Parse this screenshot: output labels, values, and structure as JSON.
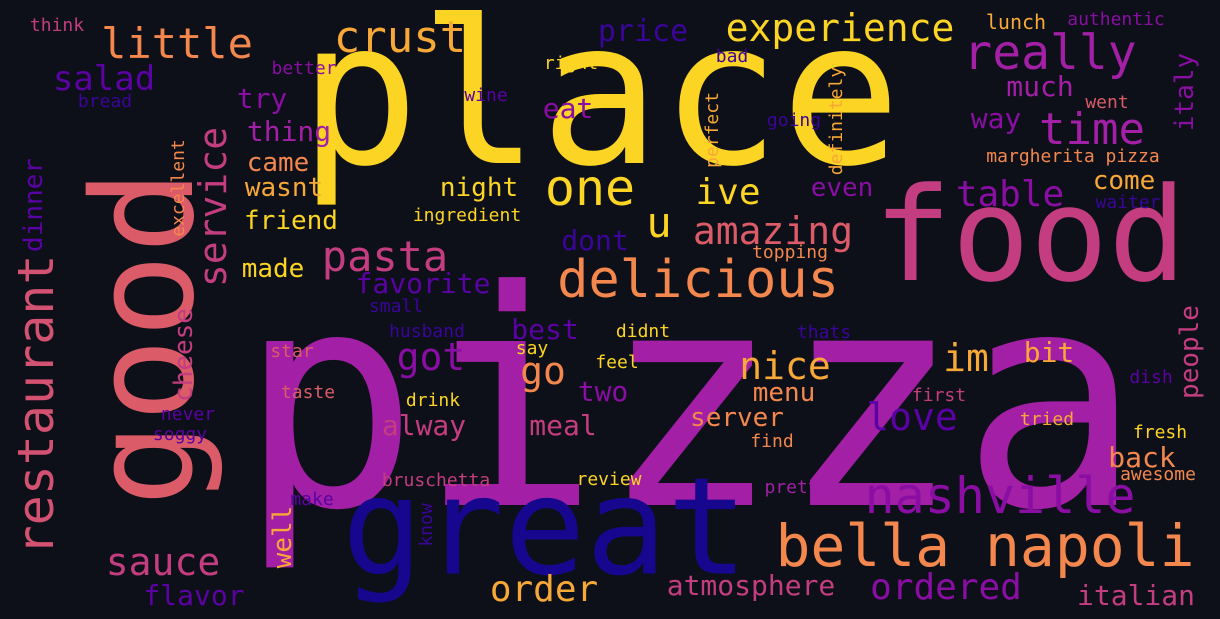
{
  "words": [
    {
      "text": "pizza",
      "color": "#a21fa6"
    },
    {
      "text": "place",
      "color": "#fbd424"
    },
    {
      "text": "good",
      "color": "#db5c68"
    },
    {
      "text": "food",
      "color": "#c33d80"
    },
    {
      "text": "great",
      "color": "#17078f"
    },
    {
      "text": "bella napoli",
      "color": "#f3874d"
    },
    {
      "text": "nashville",
      "color": "#8a0da4"
    },
    {
      "text": "restaurant",
      "color": "#d35171"
    },
    {
      "text": "delicious",
      "color": "#f3874d"
    },
    {
      "text": "one",
      "color": "#fbd424"
    },
    {
      "text": "really",
      "color": "#a21fa6"
    },
    {
      "text": "time",
      "color": "#a21fa6"
    },
    {
      "text": "little",
      "color": "#f3874d"
    },
    {
      "text": "crust",
      "color": "#f8a836"
    },
    {
      "text": "experience",
      "color": "#fbd424"
    },
    {
      "text": "service",
      "color": "#c33d80"
    },
    {
      "text": "pasta",
      "color": "#c33d80"
    },
    {
      "text": "salad",
      "color": "#5a02a3"
    },
    {
      "text": "amazing",
      "color": "#db5c68"
    },
    {
      "text": "u",
      "color": "#fbd424"
    },
    {
      "text": "ive",
      "color": "#fbd424"
    },
    {
      "text": "table",
      "color": "#8a0da4"
    },
    {
      "text": "nice",
      "color": "#f8a836"
    },
    {
      "text": "im",
      "color": "#f8a836"
    },
    {
      "text": "go",
      "color": "#f3874d"
    },
    {
      "text": "got",
      "color": "#8a0da4"
    },
    {
      "text": "love",
      "color": "#5a02a3"
    },
    {
      "text": "sauce",
      "color": "#c33d80"
    },
    {
      "text": "order",
      "color": "#f8a836"
    },
    {
      "text": "ordered",
      "color": "#8a0da4"
    },
    {
      "text": "atmosphere",
      "color": "#c33d80"
    },
    {
      "text": "italian",
      "color": "#c33d80"
    },
    {
      "text": "flavor",
      "color": "#5a02a3"
    },
    {
      "text": "cheese",
      "color": "#c33d80"
    },
    {
      "text": "dinner",
      "color": "#5a02a3"
    },
    {
      "text": "people",
      "color": "#c33d80"
    },
    {
      "text": "italy",
      "color": "#8a0da4"
    },
    {
      "text": "much",
      "color": "#a21fa6"
    },
    {
      "text": "way",
      "color": "#8a0da4"
    },
    {
      "text": "price",
      "color": "#3b049a"
    },
    {
      "text": "eat",
      "color": "#8a0da4"
    },
    {
      "text": "try",
      "color": "#8a0da4"
    },
    {
      "text": "thing",
      "color": "#a21fa6"
    },
    {
      "text": "came",
      "color": "#f3874d"
    },
    {
      "text": "wasnt",
      "color": "#f8a836"
    },
    {
      "text": "night",
      "color": "#fbd424"
    },
    {
      "text": "friend",
      "color": "#fbd424"
    },
    {
      "text": "made",
      "color": "#fbd424"
    },
    {
      "text": "favorite",
      "color": "#5a02a3"
    },
    {
      "text": "dont",
      "color": "#3b049a"
    },
    {
      "text": "even",
      "color": "#8a0da4"
    },
    {
      "text": "come",
      "color": "#f8a836"
    },
    {
      "text": "best",
      "color": "#5a02a3"
    },
    {
      "text": "two",
      "color": "#8a0da4"
    },
    {
      "text": "menu",
      "color": "#f3874d"
    },
    {
      "text": "bit",
      "color": "#f8a836"
    },
    {
      "text": "alway",
      "color": "#c33d80"
    },
    {
      "text": "meal",
      "color": "#c33d80"
    },
    {
      "text": "server",
      "color": "#f3874d"
    },
    {
      "text": "back",
      "color": "#f3874d"
    },
    {
      "text": "well",
      "color": "#f8a836"
    },
    {
      "text": "think",
      "color": "#c33d80"
    },
    {
      "text": "better",
      "color": "#8a0da4"
    },
    {
      "text": "right",
      "color": "#fbd424"
    },
    {
      "text": "bad",
      "color": "#3b049a"
    },
    {
      "text": "lunch",
      "color": "#f8a836"
    },
    {
      "text": "authentic",
      "color": "#8a0da4"
    },
    {
      "text": "bread",
      "color": "#3b049a"
    },
    {
      "text": "wine",
      "color": "#5a02a3"
    },
    {
      "text": "going",
      "color": "#3b049a"
    },
    {
      "text": "perfect",
      "color": "#f8a836"
    },
    {
      "text": "definitely",
      "color": "#f8a836"
    },
    {
      "text": "went",
      "color": "#db5c68"
    },
    {
      "text": "margherita pizza",
      "color": "#f3874d"
    },
    {
      "text": "waiter",
      "color": "#3b049a"
    },
    {
      "text": "excellent",
      "color": "#f3874d"
    },
    {
      "text": "ingredient",
      "color": "#fbd424"
    },
    {
      "text": "topping",
      "color": "#f3874d"
    },
    {
      "text": "small",
      "color": "#3b049a"
    },
    {
      "text": "husband",
      "color": "#3b049a"
    },
    {
      "text": "didnt",
      "color": "#fbd424"
    },
    {
      "text": "thats",
      "color": "#3b049a"
    },
    {
      "text": "say",
      "color": "#fbd424"
    },
    {
      "text": "star",
      "color": "#db5c68"
    },
    {
      "text": "feel",
      "color": "#fbd424"
    },
    {
      "text": "dish",
      "color": "#5a02a3"
    },
    {
      "text": "taste",
      "color": "#db5c68"
    },
    {
      "text": "first",
      "color": "#c33d80"
    },
    {
      "text": "drink",
      "color": "#fbd424"
    },
    {
      "text": "never",
      "color": "#5a02a3"
    },
    {
      "text": "soggy",
      "color": "#5a02a3"
    },
    {
      "text": "tried",
      "color": "#f8a836"
    },
    {
      "text": "find",
      "color": "#f3874d"
    },
    {
      "text": "fresh",
      "color": "#fbd424"
    },
    {
      "text": "awesome",
      "color": "#f3874d"
    },
    {
      "text": "bruschetta",
      "color": "#c33d80"
    },
    {
      "text": "review",
      "color": "#fbd424"
    },
    {
      "text": "pretty",
      "color": "#a21fa6"
    },
    {
      "text": "make",
      "color": "#5a02a3"
    },
    {
      "text": "know",
      "color": "#3b049a"
    }
  ]
}
